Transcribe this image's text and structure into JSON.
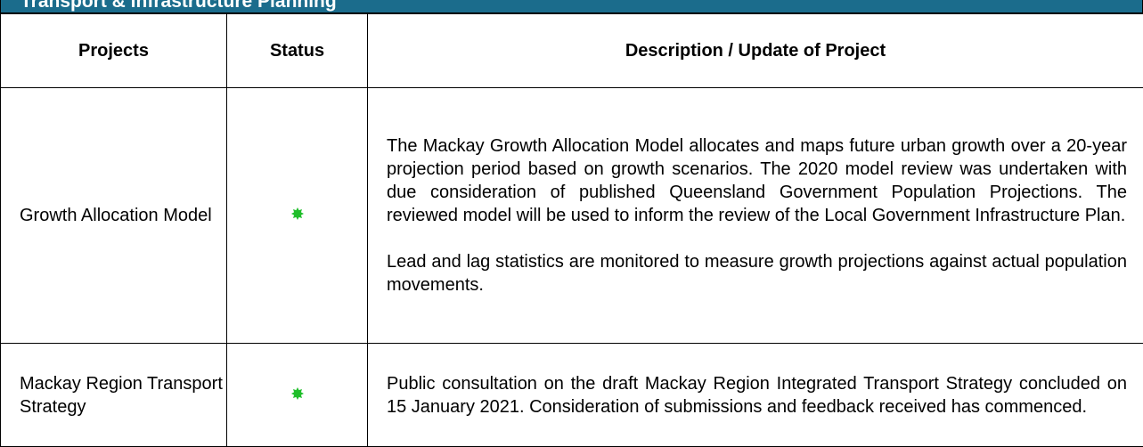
{
  "banner": {
    "title": "Transport & Infrastructure Planning"
  },
  "table": {
    "headers": [
      "Projects",
      "Status",
      "Description / Update of Project"
    ],
    "rows": [
      {
        "project": "Growth Allocation Model",
        "description": [
          "The Mackay Growth Allocation Model allocates and maps future urban growth over a 20-year projection period based on growth scenarios. The 2020 model review was undertaken with due consideration of published Queensland Government Population Projections.   The reviewed model will be used to inform the review of the Local Government Infrastructure Plan.",
          "Lead and lag statistics are monitored to measure growth projections against actual population movements."
        ]
      },
      {
        "project": "Mackay Region Transport Strategy",
        "description": [
          "Public consultation on the draft Mackay Region Integrated Transport Strategy concluded on 15 January 2021. Consideration of submissions and feedback received has commenced."
        ]
      }
    ]
  }
}
